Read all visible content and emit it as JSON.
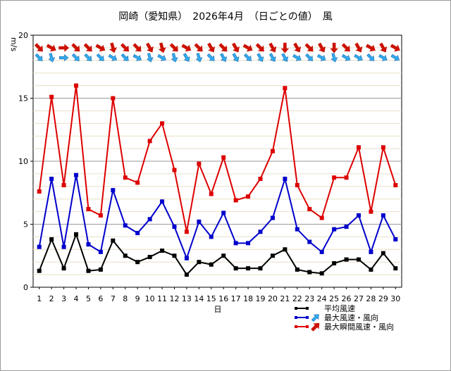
{
  "chart_data": {
    "type": "line",
    "title": "岡崎（愛知県）　2026年4月　（日ごとの値）　風",
    "ylabel": "m/s",
    "xlabel": "日",
    "ylim": [
      0,
      20
    ],
    "yticks": [
      0,
      5,
      10,
      15,
      20
    ],
    "categories": [
      "1",
      "2",
      "3",
      "4",
      "5",
      "6",
      "7",
      "8",
      "9",
      "10",
      "11",
      "12",
      "13",
      "14",
      "15",
      "16",
      "17",
      "18",
      "19",
      "20",
      "21",
      "22",
      "23",
      "24",
      "25",
      "26",
      "27",
      "28",
      "29",
      "30"
    ],
    "grid": "horizontal",
    "legend_position": "bottom-right",
    "series": [
      {
        "name": "平均風速",
        "color": "#000000",
        "values": [
          1.3,
          3.8,
          1.5,
          4.2,
          1.3,
          1.4,
          3.7,
          2.5,
          2.0,
          2.4,
          2.9,
          2.5,
          1.0,
          2.0,
          1.8,
          2.5,
          1.5,
          1.5,
          1.5,
          2.5,
          3.0,
          1.4,
          1.2,
          1.1,
          1.9,
          2.2,
          2.2,
          1.4,
          2.7,
          1.5
        ]
      },
      {
        "name": "最大風速・風向",
        "color": "#0000cc",
        "arrow_color": "#33aaee",
        "values": [
          3.2,
          8.6,
          3.2,
          8.9,
          3.4,
          2.8,
          7.7,
          4.9,
          4.3,
          5.4,
          6.8,
          4.8,
          2.3,
          5.2,
          4.0,
          5.9,
          3.5,
          3.5,
          4.4,
          5.5,
          8.6,
          4.6,
          3.6,
          2.8,
          4.6,
          4.8,
          5.7,
          2.8,
          5.7,
          3.8
        ],
        "directions_deg": [
          315,
          345,
          270,
          315,
          315,
          315,
          300,
          315,
          300,
          345,
          300,
          345,
          330,
          345,
          315,
          330,
          330,
          315,
          330,
          330,
          330,
          300,
          315,
          300,
          345,
          300,
          300,
          315,
          300,
          300
        ]
      },
      {
        "name": "最大瞬間風速・風向",
        "color": "#dd0000",
        "arrow_color": "#cc1100",
        "values": [
          7.6,
          15.1,
          8.1,
          16.0,
          6.2,
          5.7,
          15.0,
          8.7,
          8.3,
          11.6,
          13.0,
          9.3,
          4.4,
          9.8,
          7.4,
          10.3,
          6.9,
          7.2,
          8.6,
          10.8,
          15.8,
          8.1,
          6.2,
          5.5,
          8.7,
          8.7,
          11.1,
          6.0,
          11.1,
          8.1
        ],
        "directions_deg": [
          315,
          300,
          270,
          315,
          315,
          300,
          345,
          315,
          315,
          330,
          345,
          315,
          300,
          315,
          330,
          315,
          330,
          300,
          315,
          330,
          360,
          330,
          315,
          330,
          360,
          315,
          330,
          300,
          330,
          300
        ]
      }
    ]
  }
}
